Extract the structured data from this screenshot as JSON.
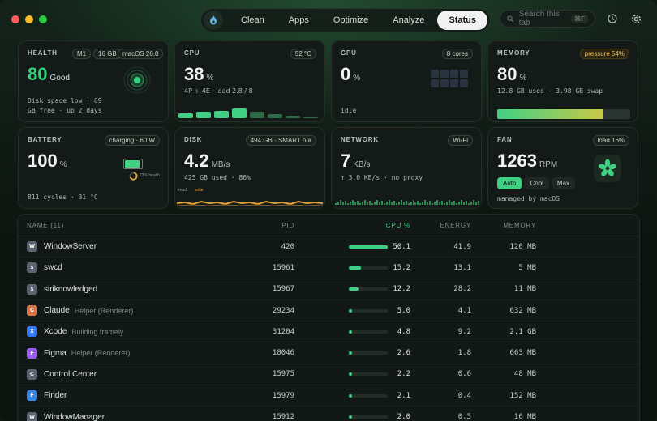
{
  "nav": {
    "tabs": [
      "Clean",
      "Apps",
      "Optimize",
      "Analyze",
      "Status"
    ],
    "active": "Status"
  },
  "search": {
    "placeholder": "Search this tab",
    "shortcut": "⌘F"
  },
  "health": {
    "title": "HEALTH",
    "chips": [
      "M1",
      "16 GB",
      "macOS 26.0"
    ],
    "score": "80",
    "label": "Good",
    "line1": "Disk space low · 69",
    "line2": "GB free · up 2 days"
  },
  "cpu": {
    "title": "CPU",
    "temp": "52 °C",
    "value": "38",
    "unit": "%",
    "detail": "4P + 4E · load 2.8 / 8",
    "core_levels": [
      0.25,
      0.3,
      0.35,
      0.45,
      0.3,
      0.2,
      0.1,
      0.05
    ]
  },
  "gpu": {
    "title": "GPU",
    "cores": "8 cores",
    "value": "0",
    "unit": "%",
    "state": "idle"
  },
  "memory": {
    "title": "MEMORY",
    "pressure": "pressure 54%",
    "value": "80",
    "unit": "%",
    "detail": "12.8 GB used · 3.98 GB swap",
    "used_fraction": 0.8
  },
  "battery": {
    "title": "BATTERY",
    "status": "charging · 60 W",
    "value": "100",
    "unit": "%",
    "detail": "811 cycles · 31 °C",
    "health": "73% health",
    "charge_fraction": 1.0
  },
  "disk": {
    "title": "DISK",
    "info": "494 GB · SMART n/a",
    "value": "4.2",
    "unit": "MB/s",
    "detail": "425 GB used · 86%",
    "legend_read": "read",
    "legend_write": "write"
  },
  "network": {
    "title": "NETWORK",
    "iface": "Wi-Fi",
    "value": "7",
    "unit": "KB/s",
    "detail": "↑ 3.0 KB/s · no proxy"
  },
  "fan": {
    "title": "FAN",
    "load": "load 16%",
    "value": "1263",
    "unit": "RPM",
    "modes": [
      "Auto",
      "Cool",
      "Max"
    ],
    "active_mode": "Auto",
    "detail": "managed by macOS"
  },
  "table": {
    "headers": {
      "name": "NAME (11)",
      "pid": "PID",
      "cpu": "CPU %",
      "energy": "ENERGY",
      "memory": "MEMORY"
    },
    "rows": [
      {
        "icon": "W",
        "color": "#5b6470",
        "name": "WindowServer",
        "helper": "",
        "pid": "420",
        "cpu": "50.1",
        "energy": "41.9",
        "mem": "120 MB"
      },
      {
        "icon": "s",
        "color": "#5b6470",
        "name": "swcd",
        "helper": "",
        "pid": "15961",
        "cpu": "15.2",
        "energy": "13.1",
        "mem": "5 MB"
      },
      {
        "icon": "s",
        "color": "#5b6470",
        "name": "siriknowledged",
        "helper": "",
        "pid": "15967",
        "cpu": "12.2",
        "energy": "28.2",
        "mem": "11 MB"
      },
      {
        "icon": "C",
        "color": "#d9744a",
        "name": "Claude",
        "helper": "Helper (Renderer)",
        "pid": "29234",
        "cpu": "5.0",
        "energy": "4.1",
        "mem": "632 MB"
      },
      {
        "icon": "X",
        "color": "#3478f6",
        "name": "Xcode",
        "helper": "Building framely",
        "pid": "31204",
        "cpu": "4.8",
        "energy": "9.2",
        "mem": "2.1 GB"
      },
      {
        "icon": "F",
        "color": "#9b5cf6",
        "name": "Figma",
        "helper": "Helper (Renderer)",
        "pid": "18046",
        "cpu": "2.6",
        "energy": "1.8",
        "mem": "663 MB"
      },
      {
        "icon": "C",
        "color": "#5b6470",
        "name": "Control Center",
        "helper": "",
        "pid": "15975",
        "cpu": "2.2",
        "energy": "0.6",
        "mem": "48 MB"
      },
      {
        "icon": "F",
        "color": "#3a86e8",
        "name": "Finder",
        "helper": "",
        "pid": "15979",
        "cpu": "2.1",
        "energy": "0.4",
        "mem": "152 MB"
      },
      {
        "icon": "W",
        "color": "#5b6470",
        "name": "WindowManager",
        "helper": "",
        "pid": "15912",
        "cpu": "2.0",
        "energy": "0.5",
        "mem": "16 MB"
      }
    ]
  }
}
